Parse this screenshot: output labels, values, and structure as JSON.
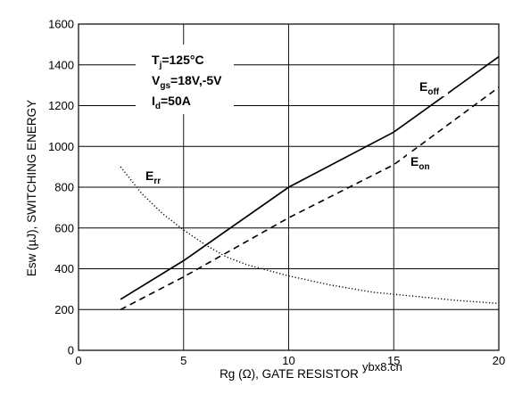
{
  "chart_data": {
    "type": "line",
    "title": "",
    "xlabel": "Rg (Ω), GATE RESISTOR",
    "ylabel": "Esw (µJ), SWITCHING ENERGY",
    "xlim": [
      0,
      20
    ],
    "ylim": [
      0,
      1600
    ],
    "xticks": [
      0,
      5,
      10,
      15,
      20
    ],
    "yticks": [
      0,
      200,
      400,
      600,
      800,
      1000,
      1200,
      1400,
      1600
    ],
    "grid": "horizontal and vertical",
    "conditions": {
      "tj": {
        "main": "T",
        "sub": "j",
        "rest": "=125°C"
      },
      "vgs": {
        "main": "V",
        "sub": "gs",
        "rest": "=18V,-5V"
      },
      "id": {
        "main": "I",
        "sub": "d",
        "rest": "=50A"
      }
    },
    "series": [
      {
        "name": "Eoff",
        "label_main": "E",
        "label_sub": "off",
        "style": "solid",
        "x": [
          2,
          5,
          10,
          15,
          20
        ],
        "y": [
          250,
          440,
          800,
          1070,
          1440
        ]
      },
      {
        "name": "Eon",
        "label_main": "E",
        "label_sub": "on",
        "style": "dashed",
        "x": [
          2,
          5,
          10,
          15,
          20
        ],
        "y": [
          200,
          360,
          650,
          910,
          1290
        ]
      },
      {
        "name": "Err",
        "label_main": "E",
        "label_sub": "rr",
        "style": "dotted",
        "x": [
          2,
          3,
          4,
          5,
          6,
          7,
          8,
          10,
          12,
          14,
          16,
          18,
          20
        ],
        "y": [
          900,
          770,
          670,
          590,
          520,
          460,
          420,
          365,
          320,
          285,
          265,
          245,
          230
        ]
      }
    ]
  },
  "watermark": "ybx8.cn",
  "colors": {
    "line": "#000000",
    "grid": "#000000",
    "background": "#ffffff"
  }
}
